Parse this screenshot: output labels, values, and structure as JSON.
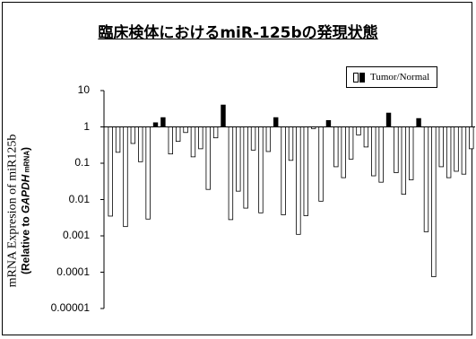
{
  "chart_data": {
    "type": "bar",
    "title": "臨床検体におけるmiR-125bの発現状態",
    "ylabel_line1": "mRNA Expresion of miR125b",
    "ylabel_line2_a": "(Relative to ",
    "ylabel_line2_gene": "GAPDH",
    "ylabel_line2_small": " mRNA",
    "ylabel_line2_b": ")",
    "yscale": "log",
    "ylim": [
      1e-05,
      10
    ],
    "baseline": 1,
    "ytick_labels": [
      "10",
      "1",
      "0.1",
      "0.01",
      "0.001",
      "0.0001",
      "0.00001"
    ],
    "ytick_values": [
      10,
      1,
      0.1,
      0.01,
      0.001,
      0.0001,
      1e-05
    ],
    "legend": {
      "label": "Tumor/Normal",
      "placement": "top-right"
    },
    "colors": {
      "below_baseline": "#ffffff",
      "above_baseline": "#000000",
      "stroke": "#000000"
    },
    "grid": false,
    "values": [
      0.0035,
      0.2,
      0.0018,
      0.35,
      0.11,
      0.0029,
      1.3,
      1.8,
      0.18,
      0.4,
      0.7,
      0.15,
      0.25,
      0.019,
      0.5,
      4,
      0.0028,
      0.017,
      0.0058,
      0.23,
      0.0043,
      0.21,
      1.8,
      0.0038,
      0.12,
      0.0011,
      0.0036,
      0.9,
      0.009,
      1.5,
      0.08,
      0.04,
      0.13,
      0.6,
      0.28,
      0.045,
      0.03,
      2.4,
      0.055,
      0.014,
      0.035,
      1.7,
      0.0013,
      7.5e-05,
      0.08,
      0.04,
      0.06,
      0.05,
      0.25
    ]
  }
}
